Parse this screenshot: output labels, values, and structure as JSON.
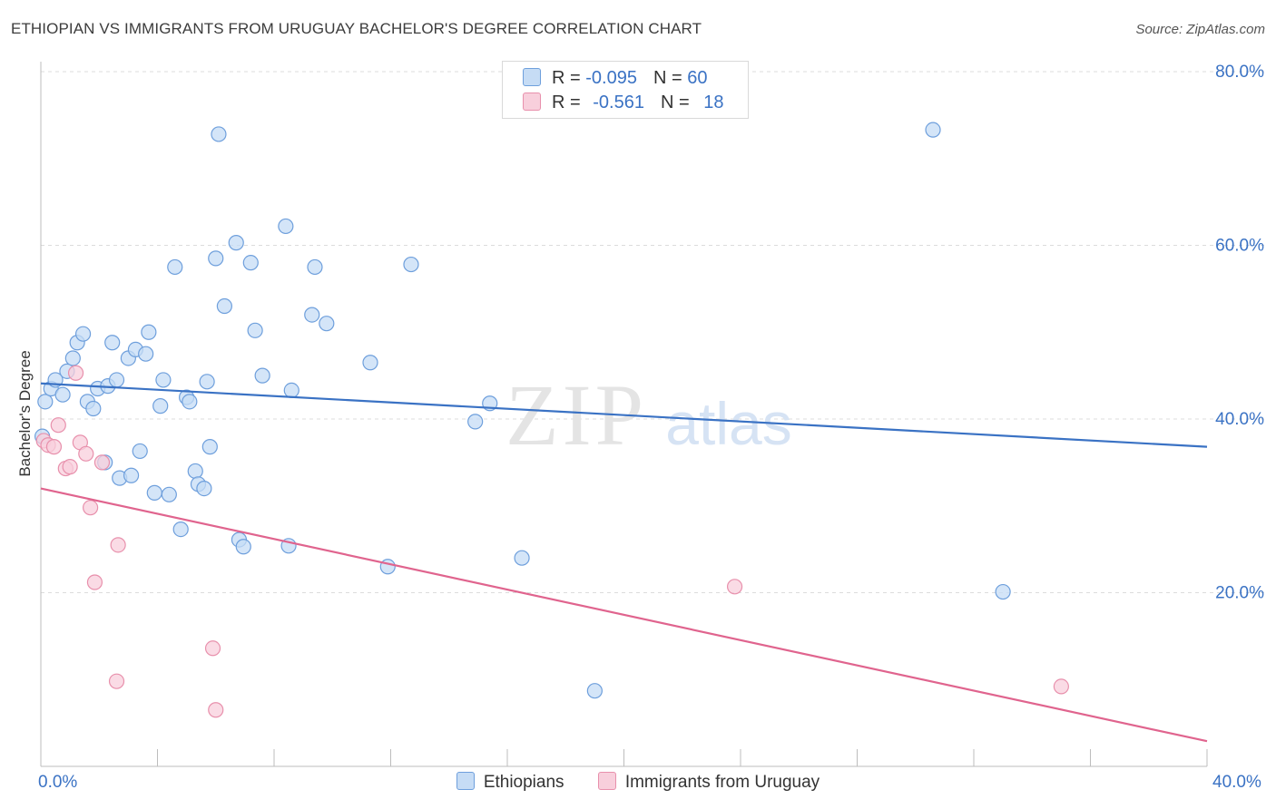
{
  "title": "ETHIOPIAN VS IMMIGRANTS FROM URUGUAY BACHELOR'S DEGREE CORRELATION CHART",
  "source": "Source: ZipAtlas.com",
  "watermark": {
    "zip": "ZIP",
    "atlas": "atlas"
  },
  "legend_top": {
    "rows": [
      {
        "r_label": "R = ",
        "r_value": "-0.095",
        "n_label": "N = ",
        "n_value": "60"
      },
      {
        "r_label": "R = ",
        "r_value": "-0.561",
        "n_label": "N = ",
        "n_value": "18"
      }
    ]
  },
  "colors": {
    "ethiopians_fill": "#c6dcf5",
    "ethiopians_stroke": "#6e9fdc",
    "ethiopians_line": "#3a72c4",
    "uruguay_fill": "#f8cfdc",
    "uruguay_stroke": "#e890ac",
    "uruguay_line": "#e0648e",
    "axis_text": "#3a72c4",
    "grid": "#dcdcdc"
  },
  "chart_data": {
    "type": "scatter",
    "title": "ETHIOPIAN VS IMMIGRANTS FROM URUGUAY BACHELOR'S DEGREE CORRELATION CHART",
    "xlabel": "",
    "ylabel": "Bachelor's Degree",
    "xlim": [
      0,
      40
    ],
    "ylim": [
      0,
      80
    ],
    "x_tick_labels": [
      "0.0%",
      "40.0%"
    ],
    "y_ticks": [
      20,
      40,
      60,
      80
    ],
    "y_tick_labels": [
      "20.0%",
      "40.0%",
      "60.0%",
      "80.0%"
    ],
    "grid": true,
    "legend_position": "top-center",
    "series": [
      {
        "name": "Ethiopians",
        "r": -0.095,
        "n": 60,
        "trend": {
          "x": [
            0,
            40
          ],
          "y": [
            44.1,
            36.8
          ]
        },
        "points": [
          [
            0.15,
            42.0
          ],
          [
            0.35,
            43.5
          ],
          [
            0.5,
            44.5
          ],
          [
            0.75,
            42.8
          ],
          [
            0.9,
            45.5
          ],
          [
            1.1,
            47.0
          ],
          [
            1.25,
            48.8
          ],
          [
            1.45,
            49.8
          ],
          [
            1.6,
            42.0
          ],
          [
            1.8,
            41.2
          ],
          [
            1.95,
            43.5
          ],
          [
            2.2,
            35.0
          ],
          [
            2.3,
            43.8
          ],
          [
            2.45,
            48.8
          ],
          [
            2.6,
            44.5
          ],
          [
            2.7,
            33.2
          ],
          [
            3.0,
            47.0
          ],
          [
            3.1,
            33.5
          ],
          [
            3.25,
            48.0
          ],
          [
            3.4,
            36.3
          ],
          [
            3.6,
            47.5
          ],
          [
            3.7,
            50.0
          ],
          [
            3.9,
            31.5
          ],
          [
            4.1,
            41.5
          ],
          [
            4.2,
            44.5
          ],
          [
            4.4,
            31.3
          ],
          [
            4.6,
            57.5
          ],
          [
            4.8,
            27.3
          ],
          [
            5.0,
            42.5
          ],
          [
            5.1,
            42.0
          ],
          [
            5.3,
            34.0
          ],
          [
            5.4,
            32.5
          ],
          [
            5.6,
            32.0
          ],
          [
            5.7,
            44.3
          ],
          [
            5.8,
            36.8
          ],
          [
            6.0,
            58.5
          ],
          [
            6.1,
            72.8
          ],
          [
            6.3,
            53.0
          ],
          [
            6.7,
            60.3
          ],
          [
            6.8,
            26.1
          ],
          [
            6.95,
            25.3
          ],
          [
            7.2,
            58.0
          ],
          [
            7.35,
            50.2
          ],
          [
            7.6,
            45.0
          ],
          [
            8.5,
            25.4
          ],
          [
            8.6,
            43.3
          ],
          [
            8.4,
            62.2
          ],
          [
            9.3,
            52.0
          ],
          [
            9.4,
            57.5
          ],
          [
            9.8,
            51.0
          ],
          [
            11.3,
            46.5
          ],
          [
            11.9,
            23.0
          ],
          [
            12.7,
            57.8
          ],
          [
            14.9,
            39.7
          ],
          [
            15.4,
            41.8
          ],
          [
            16.5,
            24.0
          ],
          [
            19.0,
            8.7
          ],
          [
            30.6,
            73.3
          ],
          [
            33.0,
            20.1
          ],
          [
            0.05,
            38.0
          ]
        ]
      },
      {
        "name": "Immigrants from Uruguay",
        "r": -0.561,
        "n": 18,
        "trend": {
          "x": [
            0,
            40
          ],
          "y": [
            32.0,
            2.9
          ]
        },
        "points": [
          [
            0.1,
            37.5
          ],
          [
            0.25,
            37.0
          ],
          [
            0.45,
            36.8
          ],
          [
            0.6,
            39.3
          ],
          [
            0.85,
            34.3
          ],
          [
            1.0,
            34.5
          ],
          [
            1.2,
            45.3
          ],
          [
            1.35,
            37.3
          ],
          [
            1.55,
            36.0
          ],
          [
            1.7,
            29.8
          ],
          [
            1.85,
            21.2
          ],
          [
            2.1,
            35.0
          ],
          [
            2.6,
            9.8
          ],
          [
            2.65,
            25.5
          ],
          [
            5.9,
            13.6
          ],
          [
            6.0,
            6.5
          ],
          [
            23.8,
            20.7
          ],
          [
            35.0,
            9.2
          ]
        ]
      }
    ]
  }
}
